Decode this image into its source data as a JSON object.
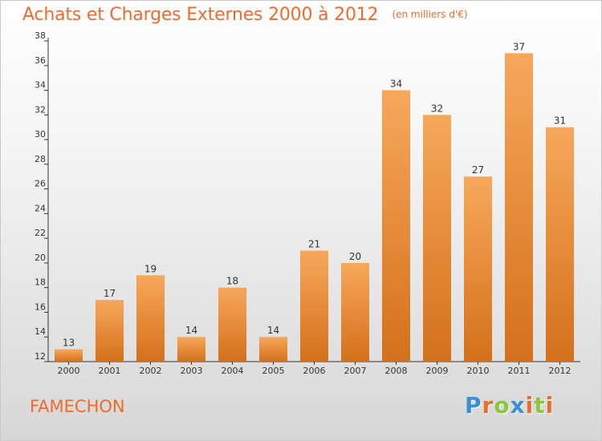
{
  "title": "Achats et Charges Externes 2000 à 2012",
  "subtitle": "(en milliers d'€)",
  "commune": "FAMECHON",
  "logo": {
    "text": "Proxiti",
    "letter_colors": [
      "#3a8fd6",
      "#ee6b2e",
      "#8cc63f",
      "#3a8fd6",
      "#ee6b2e",
      "#8cc63f",
      "#ee6b2e"
    ]
  },
  "colors": {
    "bar_top": "#f7a85b",
    "bar_bottom": "#d4701b",
    "text_accent": "#ee6b2e",
    "axis": "#333333"
  },
  "chart_data": {
    "type": "bar",
    "title": "Achats et Charges Externes 2000 à 2012",
    "subtitle": "(en milliers d'€)",
    "xlabel": "",
    "ylabel": "",
    "categories": [
      "2000",
      "2001",
      "2002",
      "2003",
      "2004",
      "2005",
      "2006",
      "2007",
      "2008",
      "2009",
      "2010",
      "2011",
      "2012"
    ],
    "values": [
      13,
      17,
      19,
      14,
      18,
      14,
      21,
      20,
      34,
      32,
      27,
      37,
      31
    ],
    "ylim": [
      12,
      38
    ],
    "yticks": [
      12,
      14,
      16,
      18,
      20,
      22,
      24,
      26,
      28,
      30,
      32,
      34,
      36,
      38
    ],
    "grid": false,
    "legend": "none",
    "data_labels": true
  }
}
